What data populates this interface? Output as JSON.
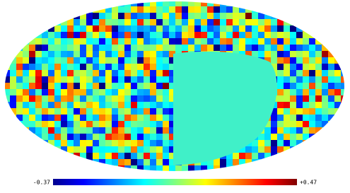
{
  "chart_data": {
    "type": "mollweide-map",
    "colormap": "jet",
    "mask_color": "#40f0c8",
    "colorbar": {
      "ticks": [
        -0.37,
        {
          "value": 0.47,
          "label": "+0.47"
        }
      ]
    }
  }
}
